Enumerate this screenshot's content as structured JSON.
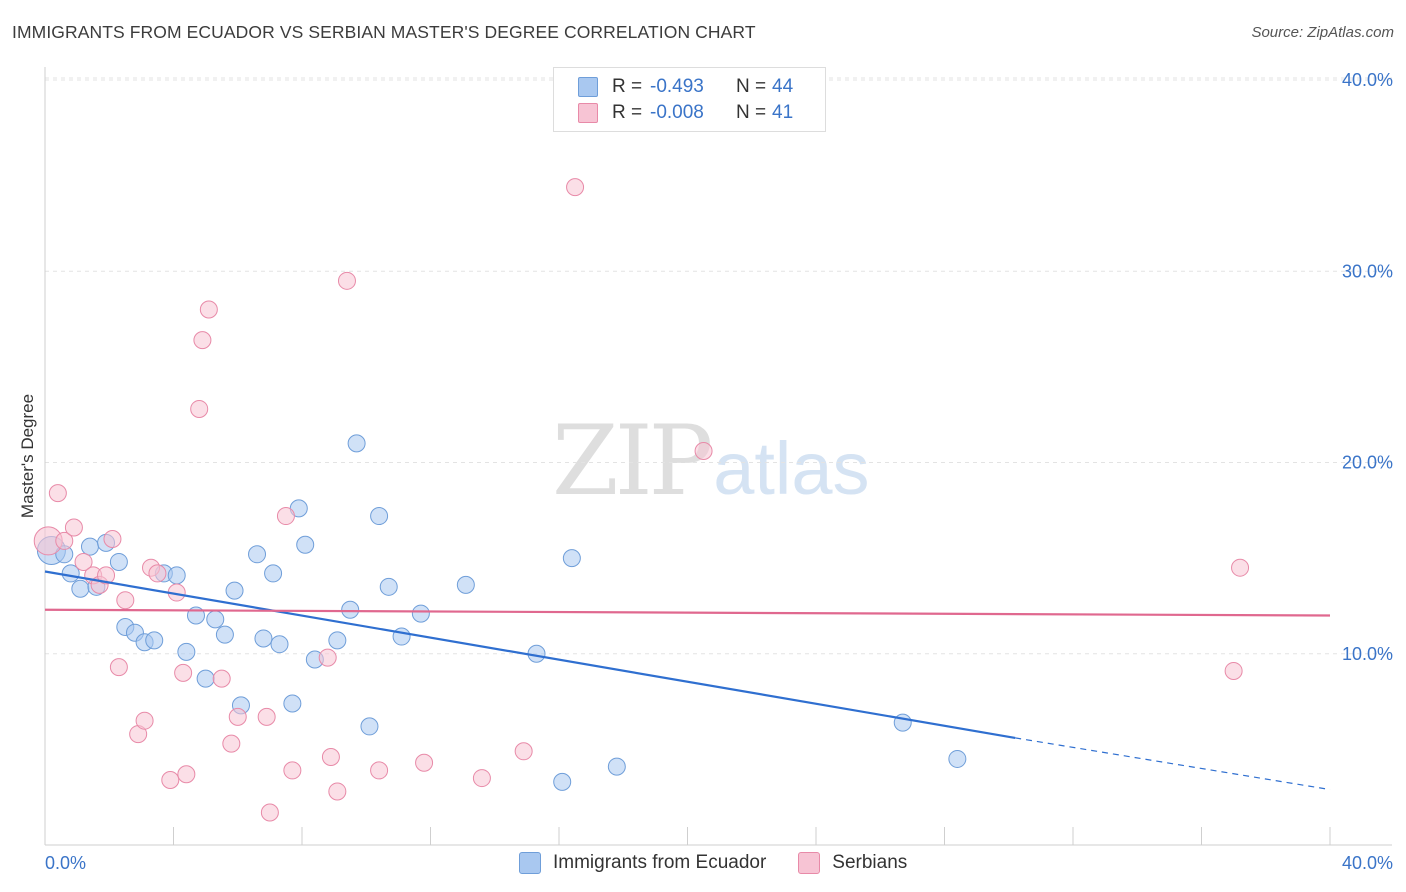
{
  "title": "IMMIGRANTS FROM ECUADOR VS SERBIAN MASTER'S DEGREE CORRELATION CHART",
  "source": "Source: ZipAtlas.com",
  "watermark": {
    "zip": "ZIP",
    "atlas": "atlas"
  },
  "legend": {
    "rows": [
      {
        "r_label": "R =",
        "r_value": "-0.493",
        "n_label": "N =",
        "n_value": "44",
        "color": "#a9c8f0",
        "border": "#6f9ed9"
      },
      {
        "r_label": "R =",
        "r_value": "-0.008",
        "n_label": "N =",
        "n_value": "41",
        "color": "#f7c4d4",
        "border": "#e88aa8"
      }
    ]
  },
  "bottom_legend": [
    "Immigrants from Ecuador",
    "Serbians"
  ],
  "chart_data": {
    "type": "scatter",
    "xlabel": "",
    "ylabel": "Master's Degree",
    "xlim": [
      0,
      40
    ],
    "ylim": [
      0,
      42
    ],
    "x_tick_labels": [
      "0.0%",
      "40.0%"
    ],
    "y_tick_labels": [
      "10.0%",
      "20.0%",
      "30.0%",
      "40.0%"
    ],
    "y_ticks": [
      10,
      20,
      30,
      40
    ],
    "grid": true,
    "series": [
      {
        "name": "Immigrants from Ecuador",
        "color": "#a9c8f0",
        "stroke": "#6f9ed9",
        "line_color": "#2f6fd0",
        "trend": {
          "x": [
            0,
            30.2
          ],
          "y": [
            14.3,
            5.6
          ],
          "dashed_to": [
            40,
            2.9
          ]
        },
        "points": [
          [
            0.2,
            15.4
          ],
          [
            0.6,
            15.2
          ],
          [
            0.8,
            14.2
          ],
          [
            1.1,
            13.4
          ],
          [
            1.4,
            15.6
          ],
          [
            1.6,
            13.5
          ],
          [
            1.9,
            15.8
          ],
          [
            2.3,
            14.8
          ],
          [
            2.5,
            11.4
          ],
          [
            2.8,
            11.1
          ],
          [
            3.1,
            10.6
          ],
          [
            3.4,
            10.7
          ],
          [
            3.7,
            14.2
          ],
          [
            4.1,
            14.1
          ],
          [
            4.4,
            10.1
          ],
          [
            4.7,
            12.0
          ],
          [
            5.0,
            8.7
          ],
          [
            5.3,
            11.8
          ],
          [
            5.6,
            11.0
          ],
          [
            5.9,
            13.3
          ],
          [
            6.1,
            7.3
          ],
          [
            6.6,
            15.2
          ],
          [
            6.8,
            10.8
          ],
          [
            7.1,
            14.2
          ],
          [
            7.3,
            10.5
          ],
          [
            7.7,
            7.4
          ],
          [
            7.9,
            17.6
          ],
          [
            8.1,
            15.7
          ],
          [
            8.4,
            9.7
          ],
          [
            9.1,
            10.7
          ],
          [
            9.5,
            12.3
          ],
          [
            9.7,
            21.0
          ],
          [
            10.1,
            6.2
          ],
          [
            10.4,
            17.2
          ],
          [
            10.7,
            13.5
          ],
          [
            11.1,
            10.9
          ],
          [
            11.7,
            12.1
          ],
          [
            13.1,
            13.6
          ],
          [
            15.3,
            10.0
          ],
          [
            16.1,
            3.3
          ],
          [
            16.4,
            15.0
          ],
          [
            17.8,
            4.1
          ],
          [
            26.7,
            6.4
          ],
          [
            28.4,
            4.5
          ]
        ]
      },
      {
        "name": "Serbians",
        "color": "#f7c4d4",
        "stroke": "#e88aa8",
        "line_color": "#e0688f",
        "trend": {
          "x": [
            0,
            40
          ],
          "y": [
            12.3,
            12.0
          ]
        },
        "points": [
          [
            0.1,
            15.9
          ],
          [
            0.4,
            18.4
          ],
          [
            0.6,
            15.9
          ],
          [
            0.9,
            16.6
          ],
          [
            1.2,
            14.8
          ],
          [
            1.5,
            14.1
          ],
          [
            1.7,
            13.6
          ],
          [
            1.9,
            14.1
          ],
          [
            2.1,
            16.0
          ],
          [
            2.3,
            9.3
          ],
          [
            2.5,
            12.8
          ],
          [
            2.9,
            5.8
          ],
          [
            3.1,
            6.5
          ],
          [
            3.3,
            14.5
          ],
          [
            3.5,
            14.2
          ],
          [
            3.9,
            3.4
          ],
          [
            4.1,
            13.2
          ],
          [
            4.3,
            9.0
          ],
          [
            4.4,
            3.7
          ],
          [
            4.8,
            22.8
          ],
          [
            4.9,
            26.4
          ],
          [
            5.1,
            28.0
          ],
          [
            5.5,
            8.7
          ],
          [
            5.8,
            5.3
          ],
          [
            6.0,
            6.7
          ],
          [
            6.9,
            6.7
          ],
          [
            7.0,
            1.7
          ],
          [
            7.5,
            17.2
          ],
          [
            7.7,
            3.9
          ],
          [
            8.8,
            9.8
          ],
          [
            8.9,
            4.6
          ],
          [
            9.1,
            2.8
          ],
          [
            9.4,
            29.5
          ],
          [
            10.4,
            3.9
          ],
          [
            11.8,
            4.3
          ],
          [
            13.6,
            3.5
          ],
          [
            14.9,
            4.9
          ],
          [
            16.5,
            34.4
          ],
          [
            20.5,
            20.6
          ],
          [
            37.0,
            9.1
          ],
          [
            37.2,
            14.5
          ]
        ]
      }
    ]
  }
}
